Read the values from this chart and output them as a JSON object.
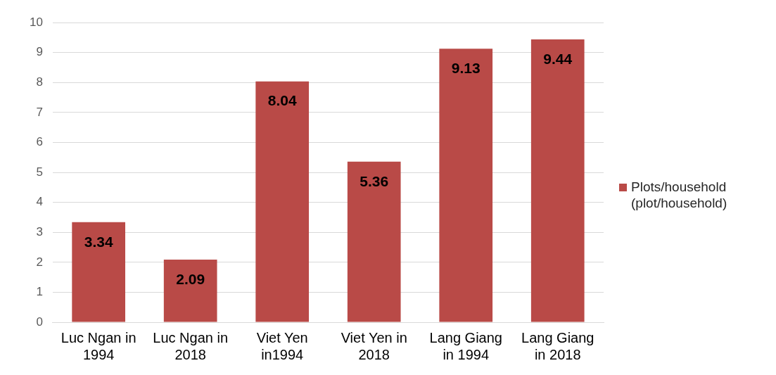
{
  "chart_data": {
    "type": "bar",
    "categories": [
      "Luc Ngan in 1994",
      "Luc Ngan in 2018",
      "Viet Yen in1994",
      "Viet Yen in 2018",
      "Lang Giang in 1994",
      "Lang Giang in 2018"
    ],
    "series": [
      {
        "name": "Plots/household (plot/household)",
        "color": "#b94a47",
        "values": [
          3.34,
          2.09,
          8.04,
          5.36,
          9.13,
          9.44
        ]
      }
    ],
    "ylim": [
      0,
      10
    ],
    "yticks": [
      0,
      1,
      2,
      3,
      4,
      5,
      6,
      7,
      8,
      9,
      10
    ],
    "grid": "y",
    "legend": "right",
    "data_labels": true
  }
}
